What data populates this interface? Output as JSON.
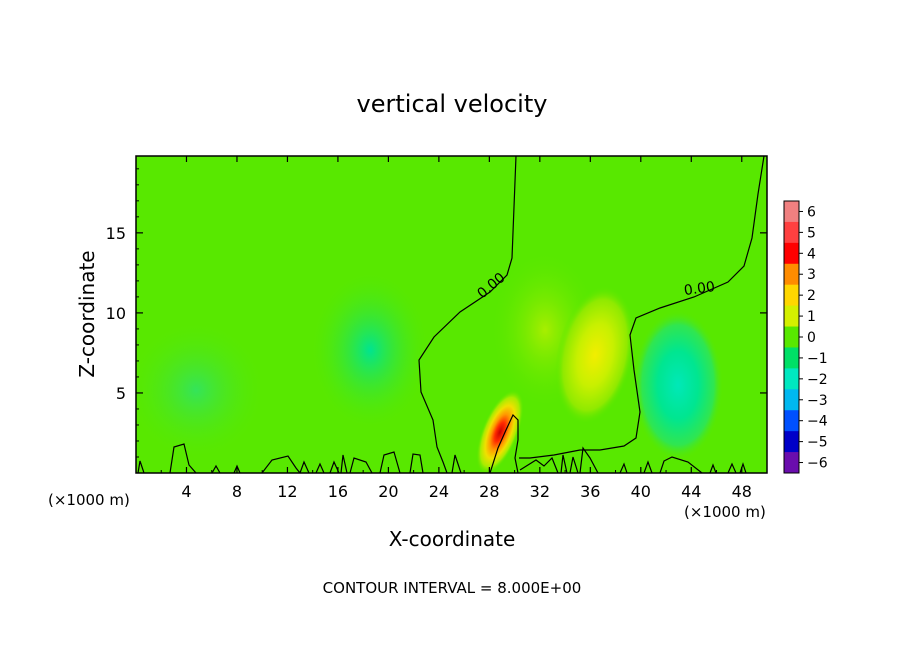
{
  "chart_data": {
    "type": "heatmap",
    "title": "vertical velocity",
    "xlabel": "X-coordinate",
    "ylabel": "Z-coordinate",
    "x_unit_left": "(×1000 m)",
    "x_unit_right": "(×1000 m)",
    "footer": "CONTOUR INTERVAL = 8.000E+00",
    "xlim": [
      0,
      50
    ],
    "ylim": [
      0,
      19.8
    ],
    "x_ticks": [
      4,
      8,
      12,
      16,
      20,
      24,
      28,
      32,
      36,
      40,
      44,
      48
    ],
    "x_tick_labels": [
      "4",
      "8",
      "12",
      "16",
      "20",
      "24",
      "28",
      "32",
      "36",
      "40",
      "44",
      "48"
    ],
    "y_ticks": [
      5,
      10,
      15
    ],
    "y_tick_labels": [
      "5",
      "10",
      "15"
    ],
    "contour_labels": [
      {
        "text": "0.00",
        "x": 28.8,
        "z": 11.8
      },
      {
        "text": "0.00",
        "x": 44.6,
        "z": 11.6
      }
    ],
    "colorbar": {
      "levels": [
        6,
        5,
        4,
        3,
        2,
        1,
        0,
        -1,
        -2,
        -3,
        -4,
        -5,
        -6
      ],
      "labels": [
        "6",
        "5",
        "4",
        "3",
        "2",
        "1",
        "0",
        "−1",
        "−2",
        "−3",
        "−4",
        "−5",
        "−6"
      ],
      "colors": [
        "#f08080",
        "#ff4040",
        "#ff0000",
        "#ff8c00",
        "#ffd700",
        "#d4f000",
        "#58e800",
        "#00e066",
        "#00e8c0",
        "#00b8f0",
        "#0050ff",
        "#0000c8",
        "#6a0dad"
      ]
    },
    "background_value": 0.4,
    "features": [
      {
        "kind": "updraft",
        "x": 29.2,
        "z": 2.6,
        "peak": 5.5
      },
      {
        "kind": "updraft",
        "x": 36.2,
        "z": 7.2,
        "peak": 1.6
      },
      {
        "kind": "updraft",
        "x": 32.5,
        "z": 9.0,
        "peak": 1.0
      },
      {
        "kind": "downdraft",
        "x": 42.8,
        "z": 5.2,
        "peak": -1.2
      },
      {
        "kind": "downdraft",
        "x": 18.5,
        "z": 7.5,
        "peak": -0.5
      },
      {
        "kind": "downdraft",
        "x": 5.0,
        "z": 5.0,
        "peak": -0.25
      }
    ]
  }
}
